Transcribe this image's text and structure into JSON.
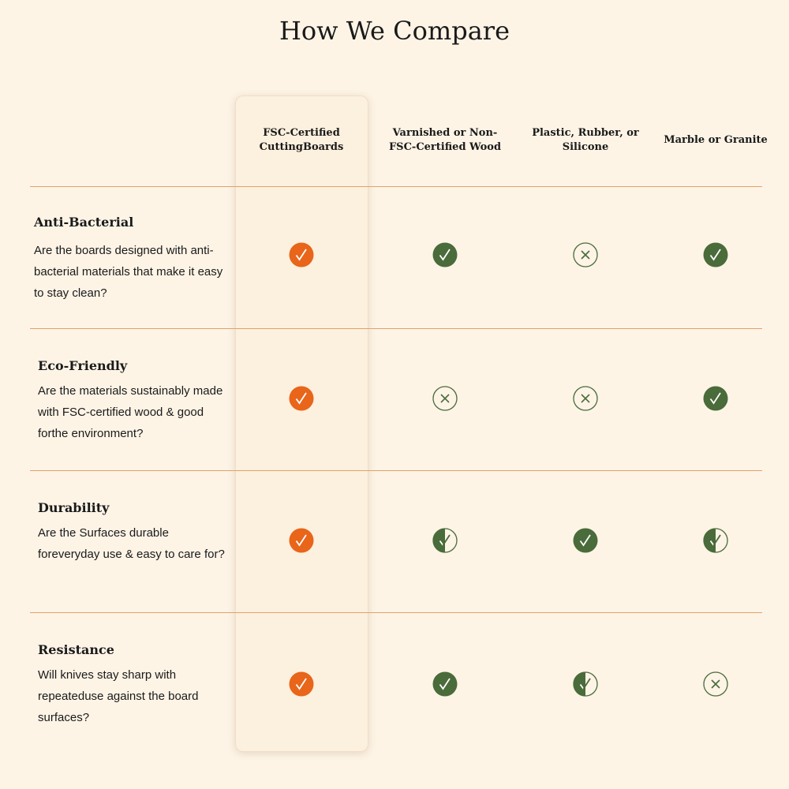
{
  "title": "How We Compare",
  "columns": [
    "FSC-Certified CuttingBoards",
    "Varnished or Non-FSC-Certified Wood",
    "Plastic, Rubber, or Silicone",
    "Marble or Granite"
  ],
  "highlight_column": 0,
  "rows": [
    {
      "title": "Anti-Bacterial",
      "description": "Are the boards designed with anti-bacterial materials that make it easy to stay clean?",
      "cells": [
        "yes",
        "yes",
        "no",
        "yes"
      ]
    },
    {
      "title": "Eco-Friendly",
      "description": "Are the materials sustainably made with FSC-certified wood & good forthe environment?",
      "cells": [
        "yes",
        "no",
        "no",
        "yes"
      ]
    },
    {
      "title": "Durability",
      "description": "Are the Surfaces durable foreveryday use & easy to care for?",
      "cells": [
        "yes",
        "partial",
        "yes",
        "partial"
      ]
    },
    {
      "title": "Resistance",
      "description": "Will knives stay sharp with repeateduse against the board surfaces?",
      "cells": [
        "yes",
        "yes",
        "partial",
        "no"
      ]
    }
  ]
}
